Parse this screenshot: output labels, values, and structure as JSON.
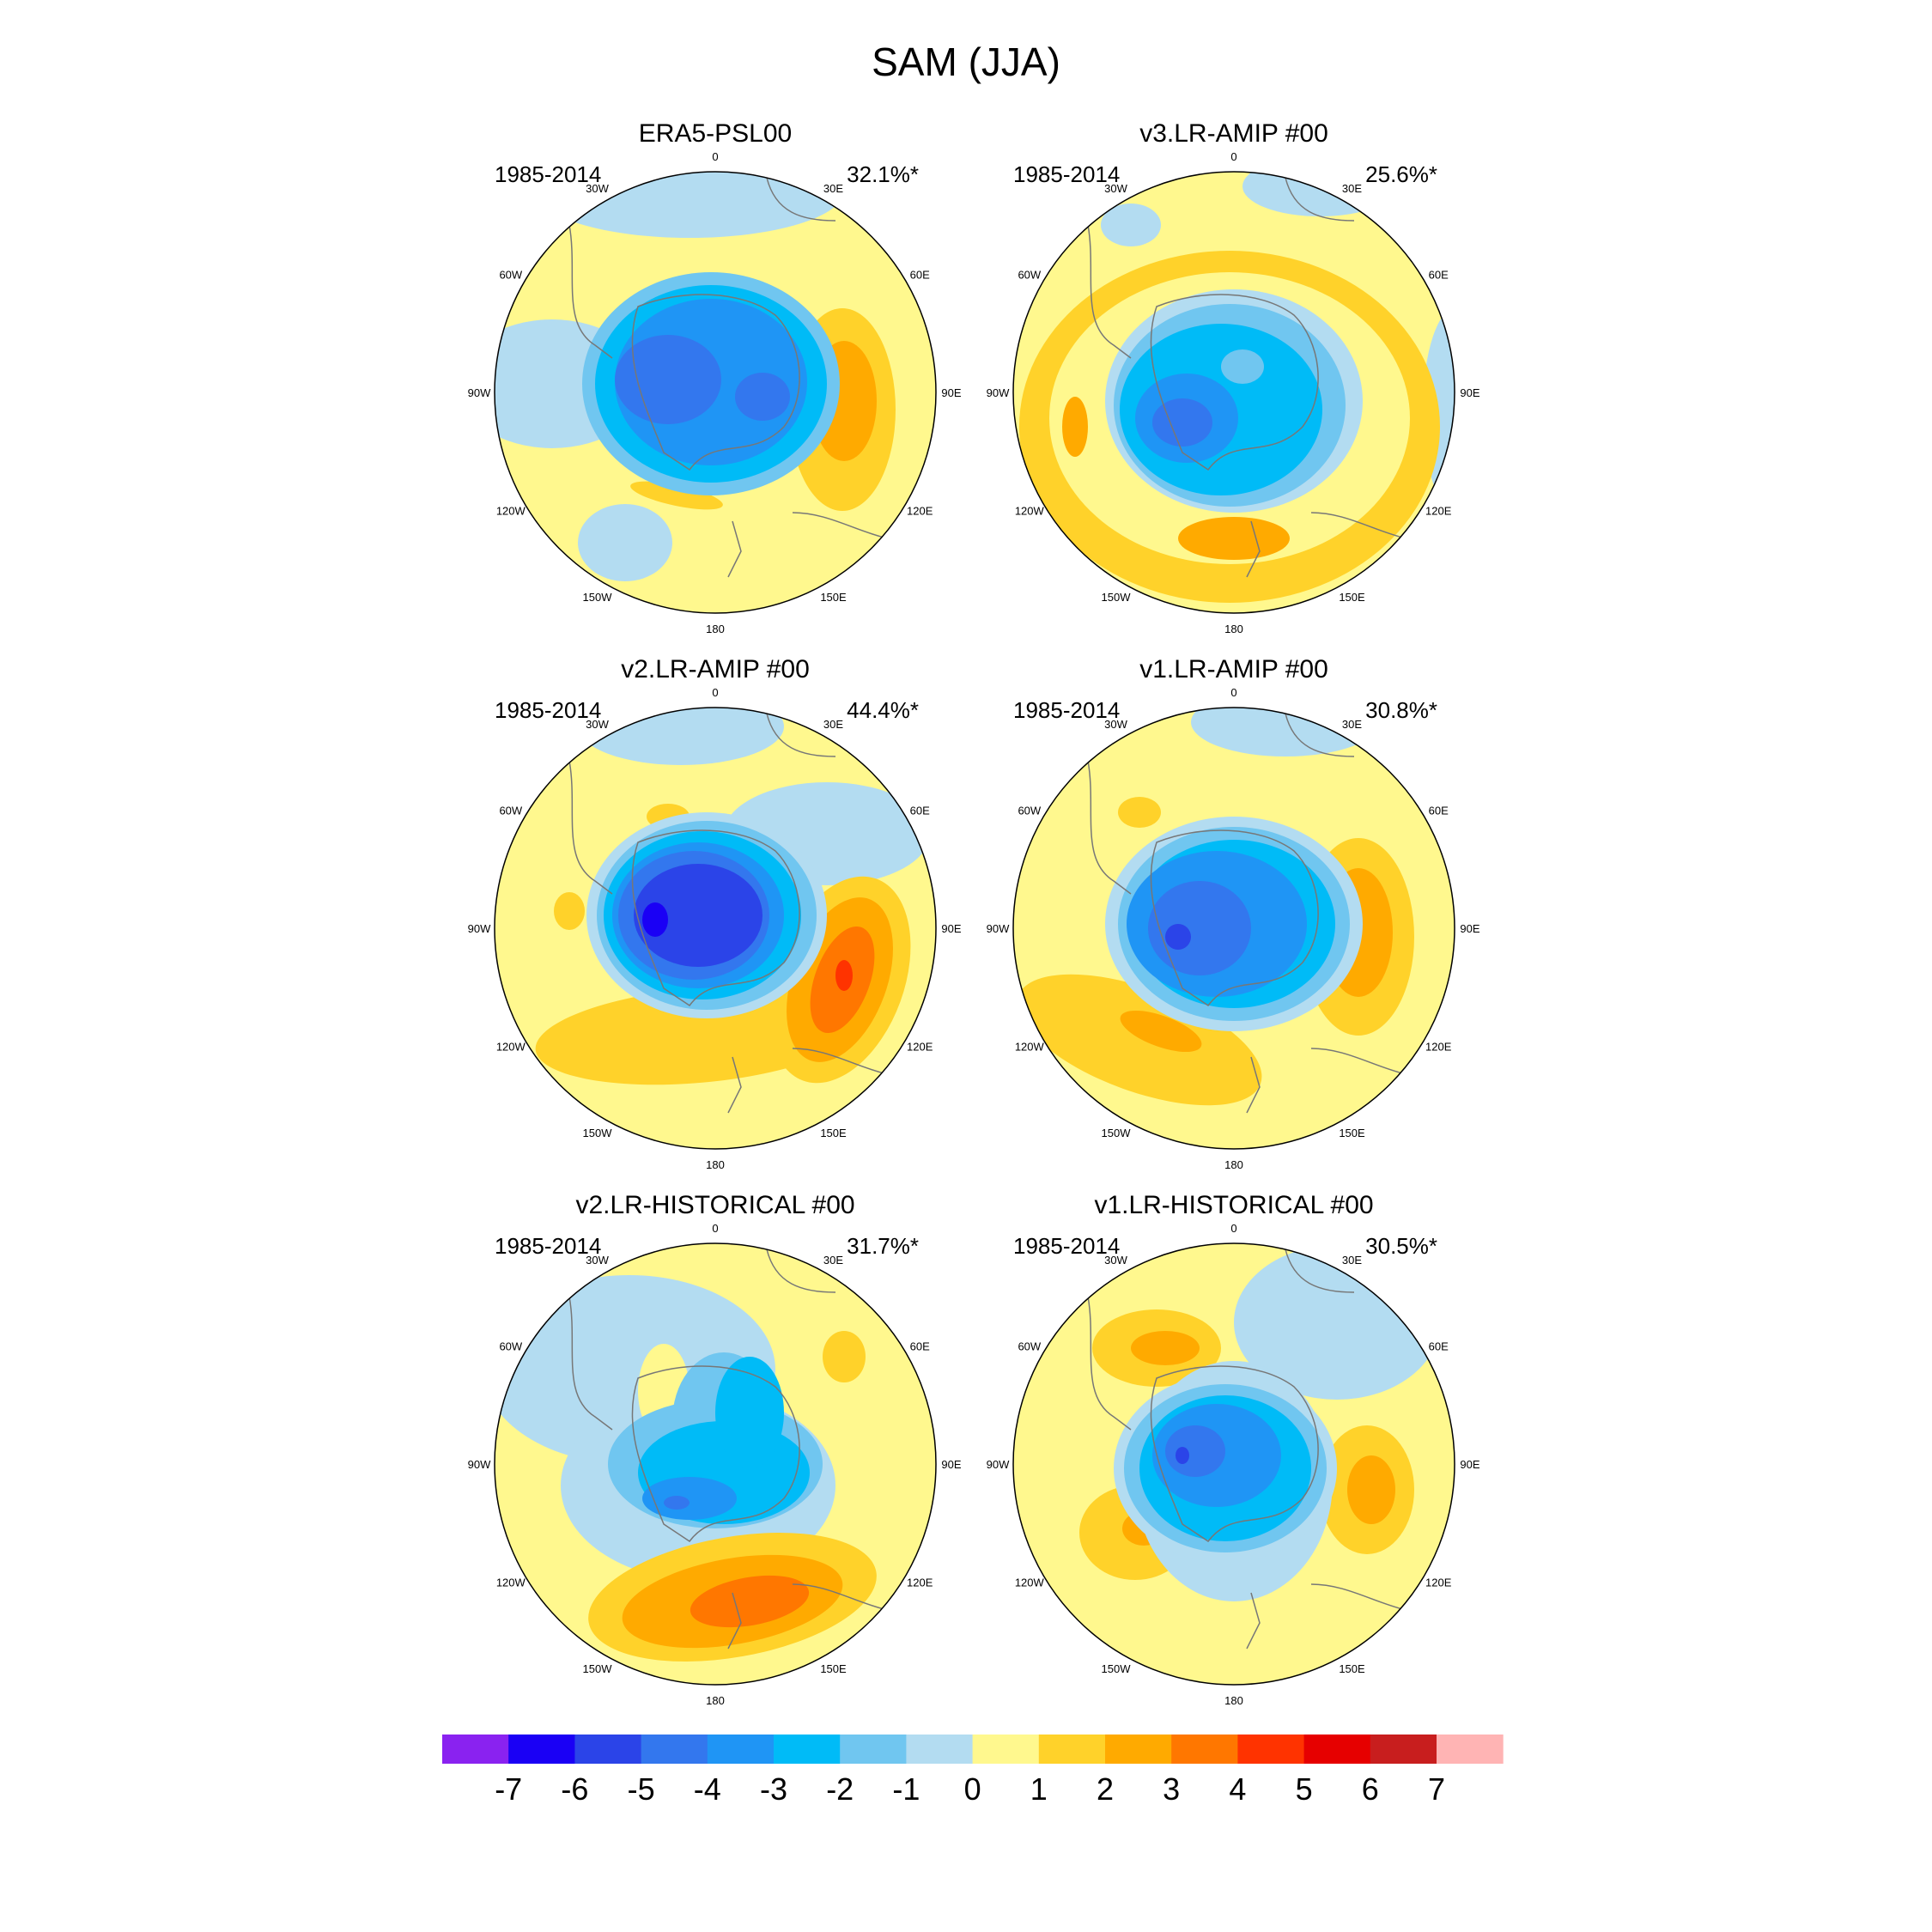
{
  "figure_title": "SAM (JJA)",
  "lon_labels": [
    "0",
    "30E",
    "60E",
    "90E",
    "120E",
    "150E",
    "180",
    "150W",
    "120W",
    "90W",
    "60W",
    "30W"
  ],
  "panels": [
    {
      "title": "ERA5-PSL00",
      "period": "1985-2014",
      "variance": "32.1%*"
    },
    {
      "title": "v3.LR-AMIP  #00",
      "period": "1985-2014",
      "variance": "25.6%*"
    },
    {
      "title": "v2.LR-AMIP  #00",
      "period": "1985-2014",
      "variance": "44.4%*"
    },
    {
      "title": "v1.LR-AMIP  #00",
      "period": "1985-2014",
      "variance": "30.8%*"
    },
    {
      "title": "v2.LR-HISTORICAL  #00",
      "period": "1985-2014",
      "variance": "31.7%*"
    },
    {
      "title": "v1.LR-HISTORICAL  #00",
      "period": "1985-2014",
      "variance": "30.5%*"
    }
  ],
  "colorbar": {
    "labels": [
      "-7",
      "-6",
      "-5",
      "-4",
      "-3",
      "-2",
      "-1",
      "0",
      "1",
      "2",
      "3",
      "4",
      "5",
      "6",
      "7"
    ],
    "colors": [
      "#8a22f0",
      "#1a00f5",
      "#2b44e8",
      "#3377ee",
      "#1f95f5",
      "#00bbf7",
      "#70c6f0",
      "#b3dcf1",
      "#fff88e",
      "#ffd22a",
      "#ffaa00",
      "#ff7700",
      "#ff3300",
      "#e60000",
      "#c81e1e",
      "#ffb4b4"
    ]
  }
}
